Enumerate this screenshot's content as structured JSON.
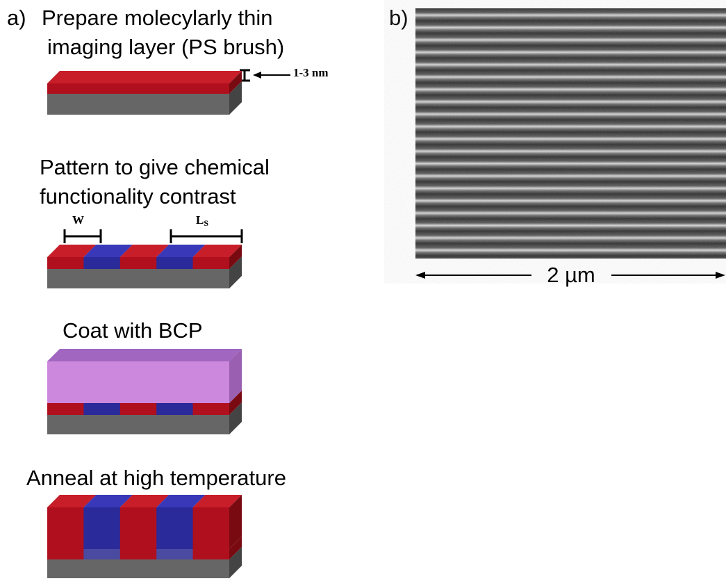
{
  "panel_a": {
    "label": "a)",
    "steps": [
      {
        "title_lines": [
          "Prepare molecylarly thin",
          "imaging layer (PS brush)"
        ],
        "annotation": "1-3 nm"
      },
      {
        "title_lines": [
          "Pattern to give chemical",
          "functionality contrast"
        ],
        "w_label": "W",
        "ls_label": "L",
        "ls_subscript": "S"
      },
      {
        "title_lines": [
          "Coat with BCP"
        ]
      },
      {
        "title_lines": [
          "Anneal at high temperature"
        ]
      }
    ]
  },
  "panel_b": {
    "label": "b)",
    "scale_bar": "2 µm"
  }
}
